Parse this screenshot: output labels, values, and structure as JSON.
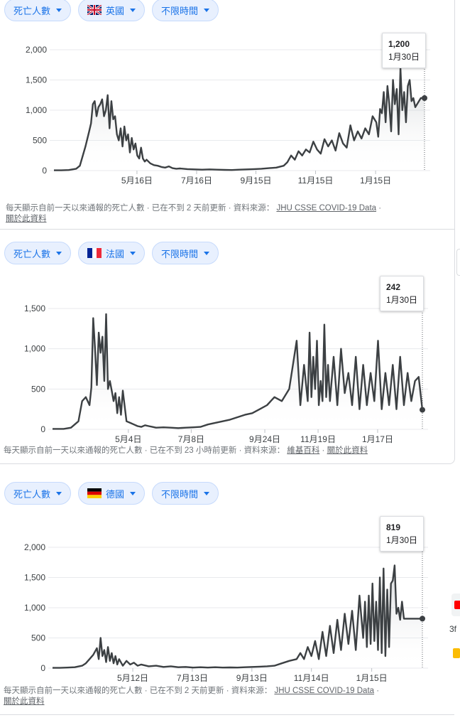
{
  "panels": [
    {
      "metric_label": "死亡人數",
      "country_label": "英國",
      "range_label": "不限時間",
      "tooltip": {
        "value": "1,200",
        "date": "1月30日"
      },
      "footer_note": "每天顯示自前一天以來通報的死亡人數 · 已在不到 2 天前更新 ·",
      "source_label": "資料來源：",
      "source_link": "JHU CSSE COVID-19 Data",
      "about_link": "關於此資料"
    },
    {
      "metric_label": "死亡人數",
      "country_label": "法國",
      "range_label": "不限時間",
      "tooltip": {
        "value": "242",
        "date": "1月30日"
      },
      "footer_note": "每天顯示自前一天以來通報的死亡人數 · 已在不到 23 小時前更新 ·",
      "source_label": "資料來源：",
      "source_link": "維基百科",
      "about_link": "關於此資料"
    },
    {
      "metric_label": "死亡人數",
      "country_label": "德國",
      "range_label": "不限時間",
      "tooltip": {
        "value": "819",
        "date": "1月30日"
      },
      "footer_note": "每天顯示自前一天以來通報的死亡人數 · 已在不到 2 天前更新 ·",
      "source_label": "資料來源：",
      "source_link": "JHU CSSE COVID-19 Data",
      "about_link": "關於此資料"
    }
  ],
  "side_fragment_text": "3f",
  "colors": {
    "line": "#3c4043",
    "grid": "#e8eaed",
    "chip_bg": "#e8f0fe",
    "chip_text": "#1a73e8",
    "youtube_red": "#ff0000"
  },
  "chart_data": [
    {
      "type": "line",
      "title": "",
      "xlabel": "",
      "ylabel": "",
      "ylim": [
        0,
        2000
      ],
      "yticks": [
        0,
        500,
        1000,
        1500,
        2000
      ],
      "ytick_labels": [
        "0",
        "500",
        "1,000",
        "1,500",
        "2,000"
      ],
      "xtick_labels": [
        "5月16日",
        "7月16日",
        "9月15日",
        "11月15日",
        "1月15日"
      ],
      "xtick_frac": [
        0.224,
        0.385,
        0.545,
        0.706,
        0.868
      ],
      "series": [
        {
          "x_frac": [
            0,
            0.02,
            0.04,
            0.06,
            0.07,
            0.085,
            0.095,
            0.1,
            0.105,
            0.11,
            0.115,
            0.12,
            0.125,
            0.13,
            0.135,
            0.14,
            0.145,
            0.15,
            0.155,
            0.16,
            0.165,
            0.17,
            0.175,
            0.18,
            0.185,
            0.19,
            0.195,
            0.2,
            0.205,
            0.21,
            0.215,
            0.22,
            0.225,
            0.23,
            0.235,
            0.24,
            0.245,
            0.25,
            0.26,
            0.27,
            0.28,
            0.29,
            0.3,
            0.31,
            0.32,
            0.33,
            0.34,
            0.36,
            0.38,
            0.4,
            0.42,
            0.44,
            0.46,
            0.48,
            0.5,
            0.52,
            0.54,
            0.56,
            0.58,
            0.6,
            0.62,
            0.63,
            0.64,
            0.65,
            0.66,
            0.67,
            0.68,
            0.69,
            0.7,
            0.71,
            0.72,
            0.73,
            0.74,
            0.75,
            0.76,
            0.77,
            0.78,
            0.79,
            0.8,
            0.81,
            0.82,
            0.83,
            0.84,
            0.85,
            0.86,
            0.87,
            0.875,
            0.88,
            0.885,
            0.89,
            0.895,
            0.9,
            0.905,
            0.91,
            0.915,
            0.92,
            0.925,
            0.93,
            0.935,
            0.94,
            0.945,
            0.95,
            0.955,
            0.96,
            0.965,
            0.97,
            0.975,
            0.98,
            0.985,
            0.99,
            0.995,
            1
          ],
          "values": [
            5,
            5,
            10,
            30,
            80,
            400,
            650,
            780,
            1100,
            1150,
            900,
            1050,
            1100,
            1180,
            900,
            1000,
            1250,
            700,
            1150,
            850,
            900,
            600,
            500,
            700,
            400,
            730,
            500,
            600,
            300,
            540,
            350,
            450,
            250,
            200,
            380,
            200,
            150,
            180,
            120,
            90,
            80,
            60,
            50,
            70,
            40,
            30,
            35,
            25,
            20,
            15,
            20,
            15,
            12,
            10,
            15,
            20,
            25,
            30,
            40,
            50,
            80,
            140,
            250,
            180,
            320,
            250,
            350,
            300,
            480,
            350,
            280,
            520,
            400,
            500,
            330,
            620,
            450,
            380,
            750,
            500,
            650,
            530,
            700,
            600,
            900,
            800,
            560,
            1020,
            950,
            1300,
            800,
            1400,
            1100,
            650,
            1500,
            1100,
            1350,
            600,
            1700,
            1000,
            1300,
            800,
            1400,
            1500,
            1150,
            1200,
            1050,
            1100,
            1150,
            1200,
            1200,
            1200
          ]
        }
      ]
    },
    {
      "type": "line",
      "title": "",
      "xlabel": "",
      "ylabel": "",
      "ylim": [
        0,
        1500
      ],
      "yticks": [
        0,
        500,
        1000,
        1500
      ],
      "ytick_labels": [
        "0",
        "500",
        "1,000",
        "1,500"
      ],
      "xtick_labels": [
        "5月4日",
        "7月8日",
        "9月24日",
        "11月19日",
        "1月17日"
      ],
      "xtick_frac": [
        0.205,
        0.375,
        0.574,
        0.718,
        0.879
      ],
      "series": [
        {
          "x_frac": [
            0,
            0.03,
            0.05,
            0.07,
            0.08,
            0.09,
            0.1,
            0.105,
            0.11,
            0.115,
            0.12,
            0.125,
            0.13,
            0.135,
            0.14,
            0.145,
            0.15,
            0.155,
            0.16,
            0.165,
            0.17,
            0.175,
            0.18,
            0.185,
            0.19,
            0.2,
            0.21,
            0.22,
            0.23,
            0.24,
            0.25,
            0.26,
            0.27,
            0.28,
            0.3,
            0.32,
            0.34,
            0.36,
            0.38,
            0.4,
            0.42,
            0.44,
            0.46,
            0.48,
            0.5,
            0.52,
            0.54,
            0.56,
            0.58,
            0.6,
            0.62,
            0.64,
            0.66,
            0.67,
            0.68,
            0.69,
            0.695,
            0.7,
            0.705,
            0.71,
            0.715,
            0.72,
            0.725,
            0.73,
            0.735,
            0.74,
            0.745,
            0.75,
            0.76,
            0.77,
            0.78,
            0.79,
            0.8,
            0.81,
            0.82,
            0.83,
            0.84,
            0.85,
            0.86,
            0.87,
            0.88,
            0.89,
            0.9,
            0.91,
            0.92,
            0.93,
            0.94,
            0.95,
            0.96,
            0.97,
            0.98,
            0.99,
            1
          ],
          "values": [
            5,
            5,
            20,
            100,
            350,
            400,
            300,
            520,
            1380,
            1000,
            550,
            1200,
            950,
            1150,
            600,
            1430,
            500,
            600,
            480,
            350,
            450,
            200,
            400,
            180,
            480,
            100,
            80,
            60,
            40,
            30,
            50,
            40,
            30,
            20,
            25,
            20,
            15,
            20,
            25,
            30,
            60,
            80,
            100,
            120,
            150,
            180,
            200,
            250,
            300,
            400,
            350,
            500,
            1100,
            300,
            800,
            350,
            1200,
            400,
            900,
            500,
            1100,
            300,
            600,
            350,
            1300,
            400,
            800,
            350,
            900,
            300,
            1000,
            450,
            700,
            300,
            900,
            250,
            800,
            300,
            700,
            350,
            1100,
            250,
            700,
            300,
            800,
            250,
            900,
            300,
            700,
            350,
            600,
            650,
            242
          ]
        }
      ]
    },
    {
      "type": "line",
      "title": "",
      "xlabel": "",
      "ylabel": "",
      "ylim": [
        0,
        2000
      ],
      "yticks": [
        0,
        500,
        1000,
        1500,
        2000
      ],
      "ytick_labels": [
        "0",
        "500",
        "1,000",
        "1,500",
        "2,000"
      ],
      "xtick_labels": [
        "5月12日",
        "7月13日",
        "9月13日",
        "11月14日",
        "1月15日"
      ],
      "xtick_frac": [
        0.217,
        0.378,
        0.539,
        0.7,
        0.863
      ],
      "series": [
        {
          "x_frac": [
            0,
            0.02,
            0.04,
            0.06,
            0.08,
            0.09,
            0.1,
            0.11,
            0.12,
            0.125,
            0.13,
            0.135,
            0.14,
            0.145,
            0.15,
            0.155,
            0.16,
            0.165,
            0.17,
            0.175,
            0.18,
            0.19,
            0.2,
            0.21,
            0.22,
            0.23,
            0.24,
            0.26,
            0.28,
            0.3,
            0.32,
            0.34,
            0.36,
            0.38,
            0.4,
            0.42,
            0.44,
            0.46,
            0.48,
            0.5,
            0.52,
            0.54,
            0.56,
            0.58,
            0.6,
            0.62,
            0.64,
            0.66,
            0.67,
            0.68,
            0.69,
            0.7,
            0.71,
            0.72,
            0.73,
            0.74,
            0.75,
            0.76,
            0.77,
            0.78,
            0.79,
            0.8,
            0.81,
            0.82,
            0.83,
            0.84,
            0.845,
            0.85,
            0.855,
            0.86,
            0.865,
            0.87,
            0.875,
            0.88,
            0.885,
            0.89,
            0.895,
            0.9,
            0.905,
            0.91,
            0.915,
            0.92,
            0.925,
            0.93,
            0.935,
            0.94,
            0.945,
            0.95,
            0.96,
            0.97,
            0.98,
            0.99,
            1
          ],
          "values": [
            5,
            5,
            10,
            15,
            40,
            80,
            150,
            220,
            330,
            150,
            500,
            200,
            300,
            100,
            350,
            120,
            250,
            80,
            200,
            60,
            150,
            40,
            120,
            60,
            90,
            40,
            60,
            30,
            40,
            20,
            30,
            15,
            20,
            10,
            15,
            10,
            15,
            10,
            12,
            10,
            15,
            20,
            25,
            30,
            40,
            80,
            120,
            150,
            250,
            150,
            350,
            200,
            450,
            150,
            600,
            200,
            700,
            250,
            800,
            300,
            900,
            400,
            950,
            300,
            1200,
            500,
            1100,
            350,
            1200,
            400,
            1400,
            450,
            1100,
            300,
            1500,
            250,
            1650,
            200,
            1300,
            350,
            1400,
            1450,
            1700,
            900,
            1000,
            800,
            1100,
            819,
            819,
            819,
            819,
            819,
            819
          ]
        }
      ]
    }
  ]
}
